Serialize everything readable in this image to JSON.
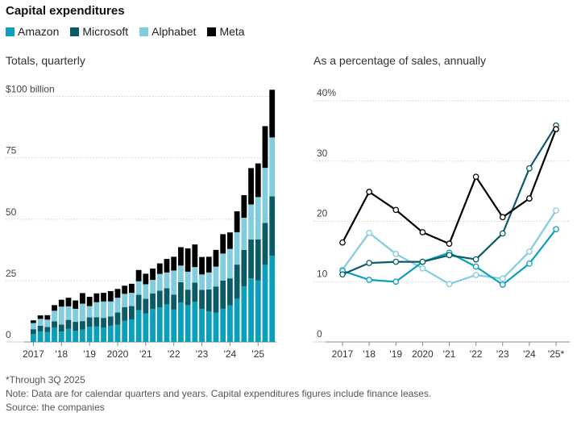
{
  "title": "Capital expenditures",
  "legend": [
    {
      "name": "Amazon",
      "color": "#0a9fba"
    },
    {
      "name": "Microsoft",
      "color": "#0b5b66"
    },
    {
      "name": "Alphabet",
      "color": "#82cce0"
    },
    {
      "name": "Meta",
      "color": "#000000"
    }
  ],
  "chart_data": [
    {
      "type": "bar",
      "stacked": true,
      "subtitle": "Totals, quarterly",
      "ylim": [
        0,
        112
      ],
      "yticks": [
        0,
        25,
        50,
        75,
        100
      ],
      "ytick_labels": [
        "0",
        "25",
        "50",
        "75",
        "$100 billion"
      ],
      "xtick_labels": [
        "2017",
        "'18",
        "'19",
        "2020",
        "'21",
        "'22",
        "'23",
        "'24",
        "'25"
      ],
      "grid": true,
      "categories": [
        "Q1 2017",
        "Q2 2017",
        "Q3 2017",
        "Q4 2017",
        "Q1 2018",
        "Q2 2018",
        "Q3 2018",
        "Q4 2018",
        "Q1 2019",
        "Q2 2019",
        "Q3 2019",
        "Q4 2019",
        "Q1 2020",
        "Q2 2020",
        "Q3 2020",
        "Q4 2020",
        "Q1 2021",
        "Q2 2021",
        "Q3 2021",
        "Q4 2021",
        "Q1 2022",
        "Q2 2022",
        "Q3 2022",
        "Q4 2022",
        "Q1 2023",
        "Q2 2023",
        "Q3 2023",
        "Q4 2023",
        "Q1 2024",
        "Q2 2024",
        "Q3 2024",
        "Q4 2024",
        "Q1 2025",
        "Q2 2025",
        "Q3 2025"
      ],
      "series": [
        {
          "name": "Amazon",
          "values": [
            3.2,
            4.3,
            4.0,
            5.8,
            4.2,
            5.3,
            4.5,
            5.1,
            6.2,
            6.3,
            5.8,
            6.6,
            7.0,
            8.6,
            9.2,
            12.9,
            11.6,
            13.4,
            14.1,
            15.3,
            13.2,
            16.0,
            15.0,
            16.4,
            13.4,
            12.5,
            11.9,
            13.5,
            14.9,
            17.6,
            22.6,
            25.9,
            25.0,
            31.4,
            35.1
          ]
        },
        {
          "name": "Microsoft",
          "values": [
            2.0,
            2.3,
            2.1,
            2.6,
            2.9,
            3.7,
            3.7,
            3.4,
            3.8,
            3.8,
            4.0,
            3.8,
            5.0,
            5.6,
            5.4,
            6.3,
            6.0,
            6.4,
            6.8,
            6.6,
            6.1,
            8.3,
            6.3,
            7.8,
            7.8,
            8.9,
            10.7,
            11.5,
            11.0,
            13.9,
            14.9,
            15.8,
            16.8,
            17.1,
            24.2
          ]
        },
        {
          "name": "Alphabet",
          "values": [
            2.5,
            2.8,
            3.0,
            4.3,
            7.3,
            5.5,
            5.3,
            7.1,
            4.6,
            6.1,
            6.7,
            6.1,
            6.0,
            5.4,
            5.4,
            5.5,
            5.9,
            5.5,
            6.8,
            6.4,
            9.8,
            6.8,
            7.3,
            6.3,
            6.3,
            6.9,
            8.1,
            11.0,
            12.0,
            13.2,
            13.1,
            14.3,
            17.2,
            22.4,
            24.0
          ]
        },
        {
          "name": "Meta",
          "values": [
            1.1,
            1.4,
            1.8,
            2.3,
            2.8,
            3.5,
            3.4,
            4.3,
            3.8,
            3.6,
            3.5,
            4.2,
            3.6,
            3.3,
            3.7,
            4.6,
            4.3,
            4.6,
            4.3,
            5.5,
            5.6,
            7.5,
            9.5,
            9.2,
            7.1,
            6.4,
            6.8,
            7.9,
            6.7,
            8.5,
            9.2,
            14.8,
            13.7,
            17.0,
            19.4
          ]
        }
      ]
    },
    {
      "type": "line",
      "subtitle": "As a percentage of sales, annually",
      "ylim": [
        0,
        40
      ],
      "yticks": [
        0,
        10,
        20,
        30,
        40
      ],
      "ytick_labels": [
        "0",
        "10",
        "20",
        "30",
        "40%"
      ],
      "categories": [
        "2017",
        "'18",
        "'19",
        "2020",
        "'21",
        "'22",
        "'23",
        "'24",
        "'25*"
      ],
      "grid": true,
      "series": [
        {
          "name": "Amazon",
          "values": [
            11.8,
            10.3,
            10.0,
            13.3,
            14.8,
            12.5,
            9.5,
            13.0,
            18.7
          ]
        },
        {
          "name": "Microsoft",
          "values": [
            11.2,
            13.1,
            13.3,
            13.3,
            14.4,
            13.7,
            18.0,
            28.8,
            35.9
          ]
        },
        {
          "name": "Alphabet",
          "values": [
            12.0,
            18.1,
            14.6,
            12.2,
            9.6,
            11.1,
            10.5,
            15.0,
            21.8
          ]
        },
        {
          "name": "Meta",
          "values": [
            16.5,
            24.9,
            21.9,
            18.2,
            16.3,
            27.4,
            20.7,
            23.8,
            35.3
          ]
        }
      ]
    }
  ],
  "notes": {
    "footnote": "*Through 3Q 2025",
    "note": "Note: Data are for calendar quarters and years. Capital expenditures figures include finance leases.",
    "source": "Source: the companies"
  }
}
